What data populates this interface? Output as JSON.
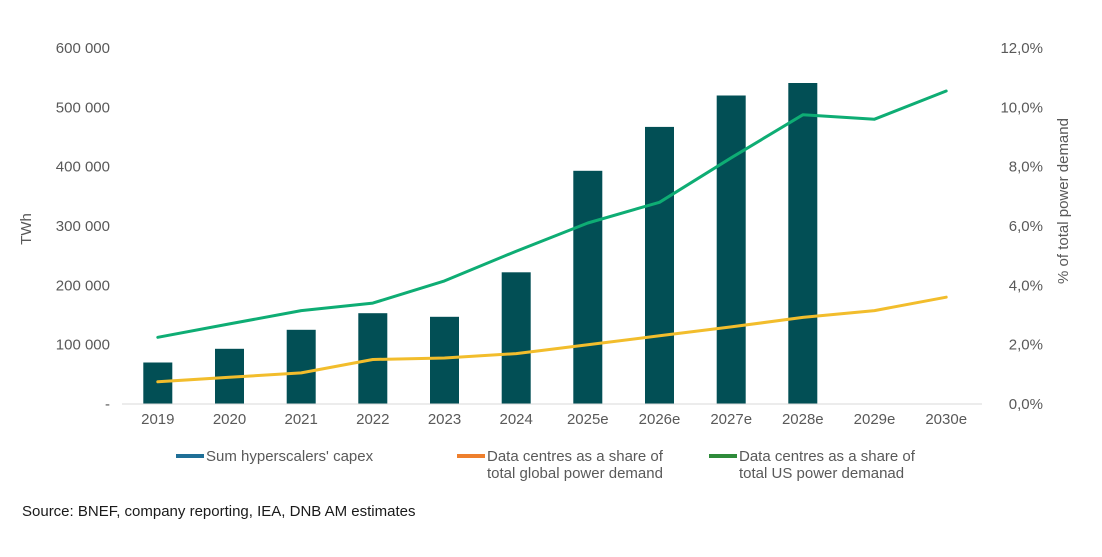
{
  "chart_data": {
    "type": "bar",
    "categories": [
      "2019",
      "2020",
      "2021",
      "2022",
      "2023",
      "2024",
      "2025e",
      "2026e",
      "2027e",
      "2028e",
      "2029e",
      "2030e"
    ],
    "series": [
      {
        "name": "Sum hyperscalers' capex",
        "kind": "bar",
        "axis": "left",
        "values": [
          70000,
          93000,
          125000,
          153000,
          147000,
          222000,
          393000,
          467000,
          520000,
          541000,
          null,
          null
        ]
      },
      {
        "name": "Data centres as a share of total global power demand",
        "kind": "line",
        "axis": "right",
        "values": [
          0.75,
          0.9,
          1.05,
          1.5,
          1.55,
          1.7,
          2.0,
          2.3,
          2.6,
          2.92,
          3.15,
          3.6
        ]
      },
      {
        "name": "Data centres as a share of total US power demanad",
        "kind": "line",
        "axis": "right",
        "values": [
          2.25,
          2.7,
          3.15,
          3.4,
          4.15,
          5.15,
          6.1,
          6.8,
          8.3,
          9.75,
          9.6,
          10.55
        ]
      }
    ],
    "left_axis": {
      "label": "TWh",
      "ylim": [
        0,
        600000
      ],
      "ticks": [
        {
          "value": 0,
          "label": "-"
        },
        {
          "value": 100000,
          "label": "100 000"
        },
        {
          "value": 200000,
          "label": "200 000"
        },
        {
          "value": 300000,
          "label": "300 000"
        },
        {
          "value": 400000,
          "label": "400 000"
        },
        {
          "value": 500000,
          "label": "500 000"
        },
        {
          "value": 600000,
          "label": "600 000"
        }
      ]
    },
    "right_axis": {
      "label": "% of total power demand",
      "ylim": [
        0,
        12
      ],
      "ticks": [
        {
          "value": 0,
          "label": "0,0%"
        },
        {
          "value": 2,
          "label": "2,0%"
        },
        {
          "value": 4,
          "label": "4,0%"
        },
        {
          "value": 6,
          "label": "6,0%"
        },
        {
          "value": 8,
          "label": "8,0%"
        },
        {
          "value": 10,
          "label": "10,0%"
        },
        {
          "value": 12,
          "label": "12,0%"
        }
      ]
    },
    "legend": {
      "position": "bottom",
      "items": [
        {
          "lines": [
            "Sum hyperscalers' capex"
          ],
          "color": "#1f6f97"
        },
        {
          "lines": [
            "Data centres as a share of",
            "total global power demand"
          ],
          "color": "#ee7f2d"
        },
        {
          "lines": [
            "Data centres as a share of",
            "total US power demanad"
          ],
          "color": "#2e8b3a"
        }
      ]
    },
    "colors": {
      "bar": "#024f55",
      "global_line": "#f2bd2c",
      "us_line": "#0ead74",
      "text": "#595959",
      "axis": "#d9d9d9"
    },
    "grid": false
  },
  "source": "Source: BNEF, company reporting, IEA, DNB AM estimates"
}
